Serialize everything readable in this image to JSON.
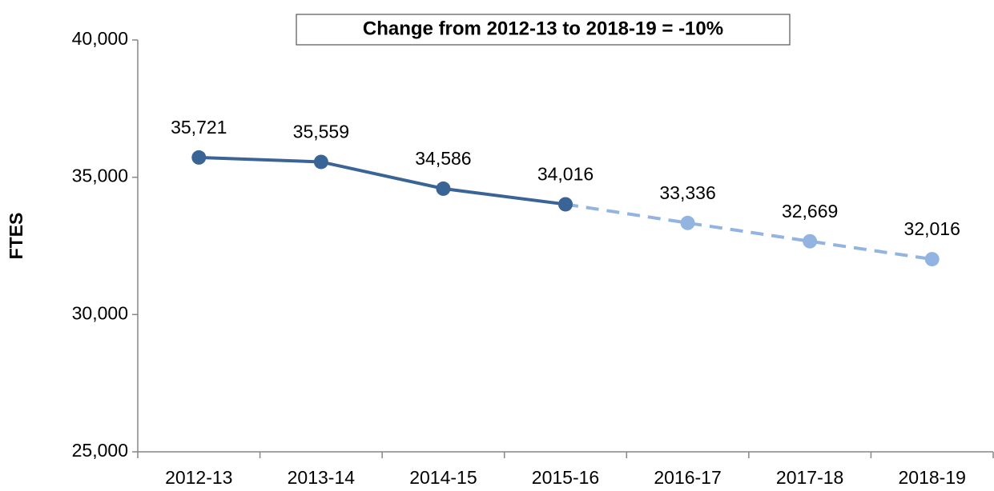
{
  "chart_data": {
    "type": "line",
    "title": "Change from 2012-13 to 2018-19 = -10%",
    "y_label": "FTES",
    "categories": [
      "2012-13",
      "2013-14",
      "2014-15",
      "2015-16",
      "2016-17",
      "2017-18",
      "2018-19"
    ],
    "series": [
      {
        "color": "#3a6496",
        "style": "solid",
        "values": [
          35721,
          35559,
          34586,
          34016,
          null,
          null,
          null
        ],
        "value_labels": [
          "35,721",
          "35,559",
          "34,586",
          "34,016",
          null,
          null,
          null
        ]
      },
      {
        "color": "#93b3e0",
        "style": "dashed",
        "values": [
          null,
          null,
          null,
          34016,
          33336,
          32669,
          32016
        ],
        "value_labels": [
          null,
          null,
          null,
          null,
          "33,336",
          "32,669",
          "32,016"
        ]
      }
    ],
    "ylim": [
      25000,
      40000
    ],
    "yticks": [
      {
        "value": 25000,
        "label": "25,000"
      },
      {
        "value": 30000,
        "label": "30,000"
      },
      {
        "value": 35000,
        "label": "35,000"
      },
      {
        "value": 40000,
        "label": "40,000"
      }
    ],
    "grid": false
  }
}
